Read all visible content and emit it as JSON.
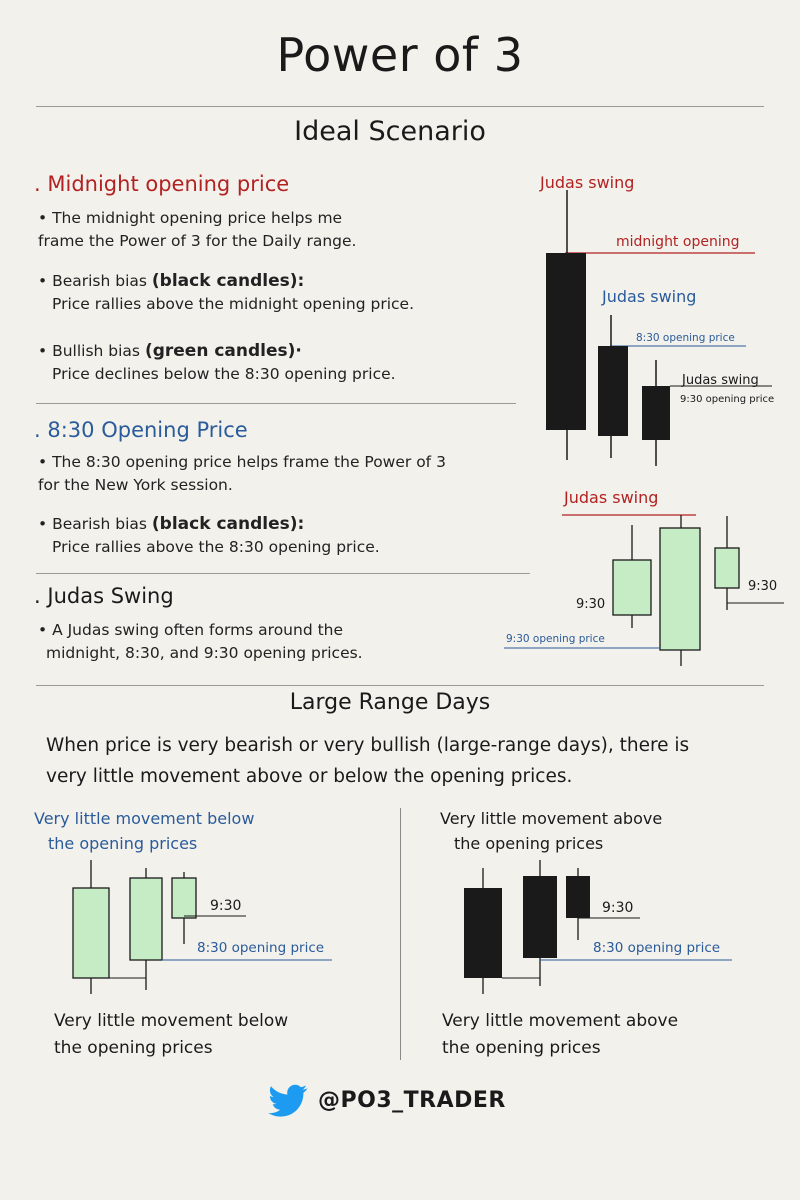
{
  "title": "Power of 3",
  "ideal": {
    "heading": "Ideal Scenario",
    "midnight": {
      "heading": "Midnight opening price",
      "line1a": "The midnight opening price helps me",
      "line1b": "frame the Power of 3 for the Daily range.",
      "bear_a": "Bearish bias ",
      "bear_b": "(black candles):",
      "bear_c": "Price rallies above the midnight opening price.",
      "bull_a": "Bullish bias ",
      "bull_b": "(green candles)·",
      "bull_c": "Price declines below the 8:30 opening price."
    },
    "open830": {
      "heading": "8:30 Opening Price",
      "line1a": "The 8:30 opening price helps frame the Power of 3",
      "line1b": "for the New York session.",
      "bear_a": "Bearish bias ",
      "bear_b": "(black candles):",
      "bear_c": "Price rallies above the 8:30 opening price."
    },
    "judas": {
      "heading": "Judas Swing",
      "line1a": "A Judas swing often forms around the",
      "line1b": "midnight, 8:30, and 9:30 opening prices."
    }
  },
  "diagram1": {
    "judas1": "Judas swing",
    "midnight_label": "midnight opening",
    "judas2": "Judas swing",
    "open830_label": "8:30 opening price",
    "judas3": "Judas swing",
    "open930_label": "9:30 opening price"
  },
  "diagram2": {
    "judas": "Judas swing",
    "l930a": "9:30",
    "open930_label": "9:30 opening price",
    "l930b": "9:30"
  },
  "large_range": {
    "heading": "Large Range Days",
    "text1": "When price is very bearish or very bullish (large-range days), there is",
    "text2": "very little movement above or below the opening prices.",
    "left": {
      "top1": "Very little movement below",
      "top2": "the opening prices",
      "l930": "9:30",
      "l830": "8:30 opening price",
      "bottom1": "Very little movement below",
      "bottom2": "the opening prices"
    },
    "right": {
      "top1": "Very little movement above",
      "top2": "the opening prices",
      "l930": "9:30",
      "l830": "8:30 opening price",
      "bottom1": "Very little movement above",
      "bottom2": "the opening prices"
    }
  },
  "footer": {
    "handle": "@PO3_TRADER",
    "icon": "twitter-bird-icon"
  },
  "colors": {
    "red": "#b22222",
    "blue": "#2a5b9a",
    "green": "#c6ecc6",
    "black": "#1a1a1a",
    "background": "#f3f1ec"
  }
}
